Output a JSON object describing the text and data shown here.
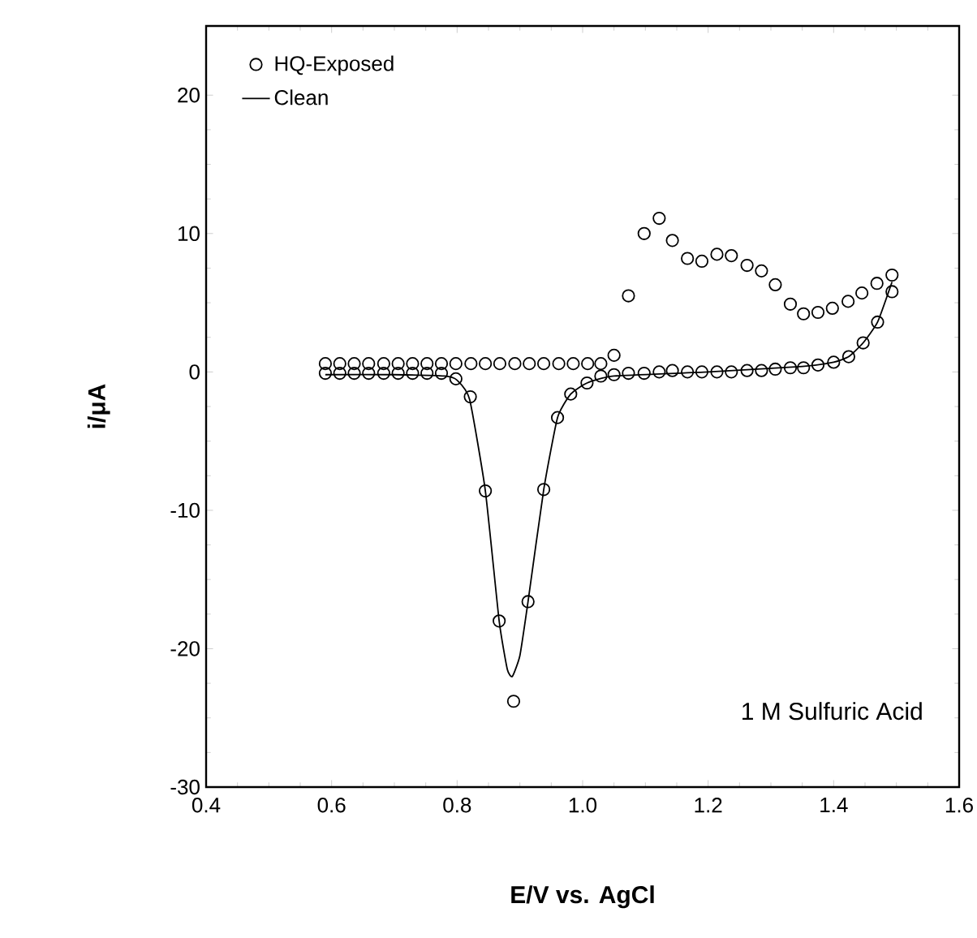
{
  "chart_data": {
    "type": "scatter",
    "xlabel": "E/V vs. AgCl",
    "ylabel": "i/μA",
    "xlim": [
      0.4,
      1.6
    ],
    "ylim": [
      -30,
      25
    ],
    "xticks": [
      0.4,
      0.6,
      0.8,
      {
        "value": 1.0,
        "label": "1.0"
      },
      1.2,
      1.4,
      1.6
    ],
    "yticks": [
      -30,
      -20,
      -10,
      0,
      10,
      20
    ],
    "legend": "top left",
    "annotations": [
      "1 M Sulfuric Acid"
    ],
    "series": [
      {
        "name": "HQ-Exposed",
        "marker": "circle",
        "color": "#000000",
        "x": [
          0.59,
          0.613,
          0.636,
          0.659,
          0.683,
          0.706,
          0.729,
          0.752,
          0.775,
          0.798,
          0.822,
          0.845,
          0.868,
          0.892,
          0.915,
          0.938,
          0.962,
          0.985,
          1.008,
          1.029,
          1.05,
          1.073,
          1.098,
          1.122,
          1.143,
          1.167,
          1.19,
          1.214,
          1.237,
          1.262,
          1.285,
          1.307,
          1.331,
          1.352,
          1.375,
          1.398,
          1.423,
          1.445,
          1.469,
          1.493,
          1.493,
          1.47,
          1.447,
          1.424,
          1.4,
          1.375,
          1.352,
          1.331,
          1.307,
          1.285,
          1.262,
          1.237,
          1.214,
          1.19,
          1.167,
          1.143,
          1.122,
          1.098,
          1.073,
          1.05,
          1.029,
          1.007,
          0.981,
          0.96,
          0.938,
          0.913,
          0.89,
          0.867,
          0.845,
          0.821,
          0.798,
          0.775,
          0.752,
          0.729,
          0.706,
          0.683,
          0.659,
          0.636,
          0.613,
          0.59
        ],
        "values": [
          0.6,
          0.6,
          0.6,
          0.6,
          0.6,
          0.6,
          0.6,
          0.6,
          0.6,
          0.6,
          0.6,
          0.6,
          0.6,
          0.6,
          0.6,
          0.6,
          0.6,
          0.6,
          0.6,
          0.6,
          1.2,
          5.5,
          10.0,
          11.1,
          9.5,
          8.2,
          8.0,
          8.5,
          8.4,
          7.7,
          7.3,
          6.3,
          4.9,
          4.2,
          4.3,
          4.6,
          5.1,
          5.7,
          6.4,
          7.0,
          5.8,
          3.6,
          2.1,
          1.1,
          0.7,
          0.5,
          0.3,
          0.3,
          0.2,
          0.1,
          0.1,
          0,
          0,
          0,
          0,
          0.1,
          0,
          -0.1,
          -0.1,
          -0.2,
          -0.3,
          -0.8,
          -1.6,
          -3.3,
          -8.5,
          -16.6,
          -23.8,
          -18.0,
          -8.6,
          -1.8,
          -0.5,
          -0.1,
          -0.1,
          -0.1,
          -0.1,
          -0.1,
          -0.1,
          -0.1,
          -0.1,
          -0.1
        ]
      },
      {
        "name": "Clean",
        "type": "line",
        "marker": "none",
        "line_style": "solid",
        "color": "#000000",
        "x": [
          0.59,
          0.7,
          0.78,
          0.8,
          0.82,
          0.845,
          0.867,
          0.88,
          0.888,
          0.9,
          0.913,
          0.938,
          0.96,
          0.981,
          1.007,
          1.05,
          1.2,
          1.35,
          1.4,
          1.424,
          1.447,
          1.47,
          1.493
        ],
        "values": [
          -0.2,
          -0.2,
          -0.3,
          -0.6,
          -2.0,
          -8.6,
          -18.0,
          -21.5,
          -22.0,
          -20.5,
          -16.6,
          -8.5,
          -3.3,
          -1.6,
          -0.8,
          -0.3,
          0,
          0.4,
          0.7,
          1.1,
          2.1,
          3.6,
          6.5
        ]
      }
    ]
  }
}
